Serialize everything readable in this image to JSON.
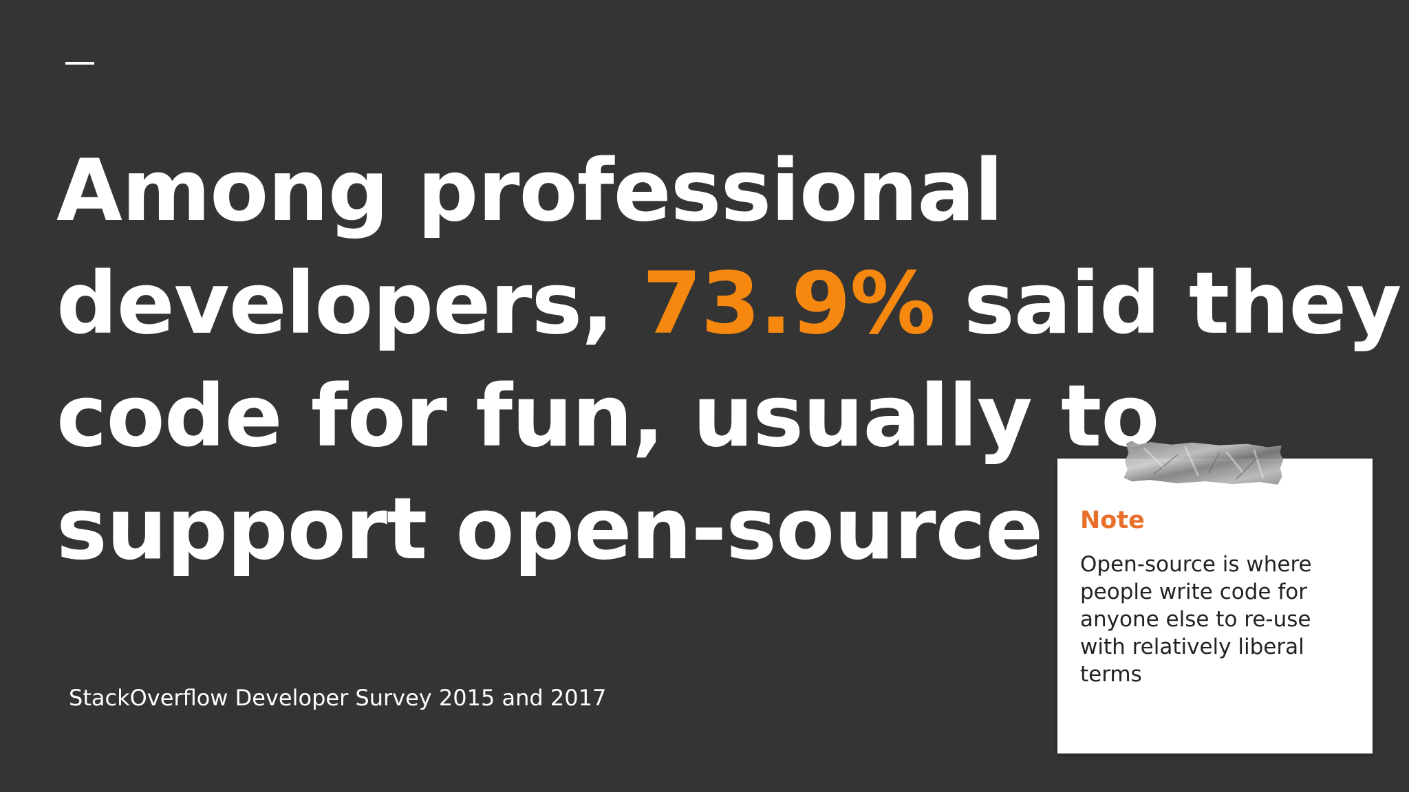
{
  "slide": {
    "headline": {
      "line1": "Among professional",
      "line2_before": "developers, ",
      "line2_highlight": "73.9%",
      "line2_after": " said they",
      "line3": "code for fun, usually to",
      "line4": "support open-source"
    },
    "source": "StackOverflow Developer Survey 2015 and 2017",
    "note": {
      "title": "Note",
      "body": "Open-source is where people write code for anyone else to re-use with relatively liberal terms"
    },
    "colors": {
      "background": "#343434",
      "highlight": "#f7880f",
      "note_title": "#e8702a",
      "note_card": "#ffffff"
    }
  }
}
